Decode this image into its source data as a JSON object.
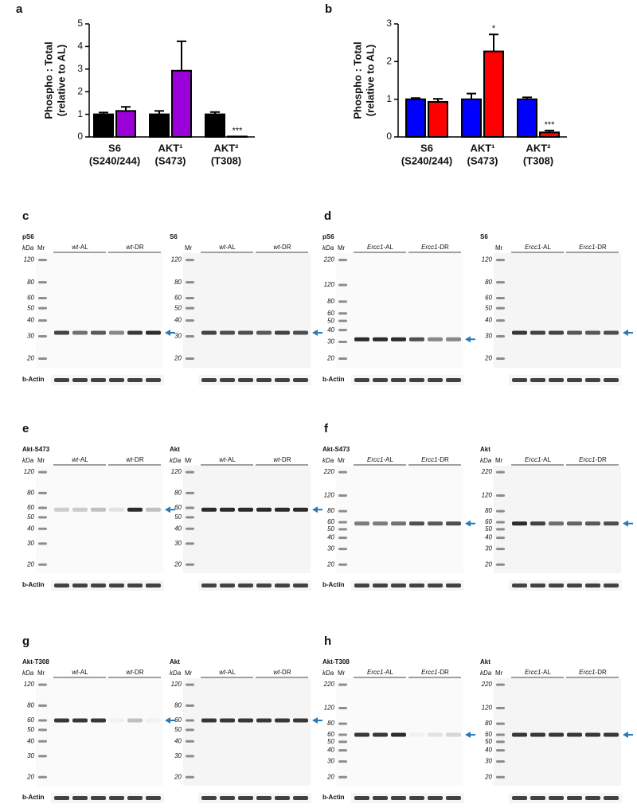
{
  "chart_data": [
    {
      "type": "bar",
      "panel": "a",
      "ylabel": [
        "Phospho : Total",
        "(relative to AL)"
      ],
      "categories": [
        [
          "S6",
          "(S240/244)"
        ],
        [
          "AKT¹",
          "(S473)"
        ],
        [
          "AKT²",
          "(T308)"
        ]
      ],
      "ylim": [
        0,
        5
      ],
      "yticks": [
        0,
        1,
        2,
        3,
        4,
        5
      ],
      "series": [
        {
          "color": "#000000",
          "values": [
            1.0,
            1.0,
            1.0
          ],
          "errors": [
            0.08,
            0.15,
            0.1
          ],
          "marks": [
            null,
            null,
            null
          ]
        },
        {
          "color": "#9b00d8",
          "values": [
            1.15,
            2.93,
            0.02
          ],
          "errors": [
            0.18,
            1.3,
            0
          ],
          "marks": [
            null,
            null,
            "***"
          ]
        }
      ]
    },
    {
      "type": "bar",
      "panel": "b",
      "ylabel": [
        "Phospho : Total",
        "(relative to AL)"
      ],
      "categories": [
        [
          "S6",
          "(S240/244)"
        ],
        [
          "AKT¹",
          "(S473)"
        ],
        [
          "AKT²",
          "(T308)"
        ]
      ],
      "ylim": [
        0,
        3
      ],
      "yticks": [
        0,
        1,
        2,
        3
      ],
      "series": [
        {
          "color": "#0000ff",
          "values": [
            1.0,
            1.0,
            1.0
          ],
          "errors": [
            0.03,
            0.15,
            0.05
          ],
          "marks": [
            null,
            null,
            null
          ]
        },
        {
          "color": "#ff0000",
          "values": [
            0.93,
            2.27,
            0.12
          ],
          "errors": [
            0.08,
            0.45,
            0.05
          ],
          "marks": [
            null,
            "*",
            "***"
          ]
        }
      ]
    }
  ],
  "blot_panels": [
    {
      "label": "c",
      "blots": [
        {
          "title": "pS6",
          "kda": "kDa",
          "mr": "Mr",
          "markers": [
            120,
            80,
            60,
            50,
            40,
            30,
            20
          ],
          "groups": [
            {
              "genotype": "wt",
              "diet": "-AL"
            },
            {
              "genotype": "wt",
              "diet": "-DR"
            }
          ],
          "loading": "b-Actin"
        },
        {
          "title": "S6",
          "mr": "Mr",
          "markers": [
            120,
            80,
            60,
            50,
            40,
            30,
            20
          ],
          "groups": [
            {
              "genotype": "wt",
              "diet": "-AL"
            },
            {
              "genotype": "wt",
              "diet": "-DR"
            }
          ]
        }
      ]
    },
    {
      "label": "d",
      "blots": [
        {
          "title": "pS6",
          "kda": "kDa",
          "mr": "Mr",
          "markers": [
            220,
            120,
            80,
            60,
            50,
            40,
            30,
            20
          ],
          "groups": [
            {
              "genotype": "Ercc1",
              "diet": "-AL"
            },
            {
              "genotype": "Ercc1",
              "diet": "-DR"
            }
          ],
          "loading": "b-Actin"
        },
        {
          "title": "S6",
          "mr": "Mr",
          "markers": [
            120,
            80,
            60,
            50,
            40,
            30,
            20
          ],
          "groups": [
            {
              "genotype": "Ercc1",
              "diet": "-AL"
            },
            {
              "genotype": "Ercc1",
              "diet": "-DR"
            }
          ]
        }
      ]
    },
    {
      "label": "e",
      "blots": [
        {
          "title": "Akt-S473",
          "kda": "kDa",
          "mr": "Mr",
          "markers": [
            120,
            80,
            60,
            50,
            40,
            30,
            20
          ],
          "groups": [
            {
              "genotype": "wt",
              "diet": "-AL"
            },
            {
              "genotype": "wt",
              "diet": "-DR"
            }
          ],
          "loading": "b-Actin"
        },
        {
          "title": "Akt",
          "kda": "kDa",
          "mr": "Mr",
          "markers": [
            120,
            80,
            60,
            50,
            40,
            30,
            20
          ],
          "groups": [
            {
              "genotype": "wt",
              "diet": "-AL"
            },
            {
              "genotype": "wt",
              "diet": "-DR"
            }
          ]
        }
      ]
    },
    {
      "label": "f",
      "blots": [
        {
          "title": "Akt-S473",
          "kda": "kDa",
          "mr": "Mr",
          "markers": [
            220,
            120,
            80,
            60,
            50,
            40,
            30,
            20
          ],
          "groups": [
            {
              "genotype": "Ercc1",
              "diet": "-AL"
            },
            {
              "genotype": "Ercc1",
              "diet": "-DR"
            }
          ],
          "loading": "b-Actin"
        },
        {
          "title": "Akt",
          "kda": "kDa",
          "mr": "Mr",
          "markers": [
            220,
            120,
            80,
            60,
            50,
            40,
            30,
            20
          ],
          "groups": [
            {
              "genotype": "Ercc1",
              "diet": "-AL"
            },
            {
              "genotype": "Ercc1",
              "diet": "-DR"
            }
          ]
        }
      ]
    },
    {
      "label": "g",
      "blots": [
        {
          "title": "Akt-T308",
          "kda": "kDa",
          "mr": "Mr",
          "markers": [
            120,
            80,
            60,
            50,
            40,
            30,
            20
          ],
          "groups": [
            {
              "genotype": "wt",
              "diet": "-AL"
            },
            {
              "genotype": "wt",
              "diet": "-DR"
            }
          ],
          "loading": "b-Actin"
        },
        {
          "title": "Akt",
          "kda": "kDa",
          "mr": "Mr",
          "markers": [
            120,
            80,
            60,
            50,
            40,
            30,
            20
          ],
          "groups": [
            {
              "genotype": "wt",
              "diet": "-AL"
            },
            {
              "genotype": "wt",
              "diet": "-DR"
            }
          ]
        }
      ]
    },
    {
      "label": "h",
      "blots": [
        {
          "title": "Akt-T308",
          "kda": "kDa",
          "mr": "Mr",
          "markers": [
            220,
            120,
            80,
            60,
            50,
            40,
            30,
            20
          ],
          "groups": [
            {
              "genotype": "Ercc1",
              "diet": "-AL"
            },
            {
              "genotype": "Ercc1",
              "diet": "-DR"
            }
          ],
          "loading": "b-Actin"
        },
        {
          "title": "Akt",
          "kda": "kDa",
          "mr": "Mr",
          "markers": [
            220,
            120,
            80,
            60,
            50,
            40,
            30,
            20
          ],
          "groups": [
            {
              "genotype": "Ercc1",
              "diet": "-AL"
            },
            {
              "genotype": "Ercc1",
              "diet": "-DR"
            }
          ]
        }
      ]
    }
  ]
}
